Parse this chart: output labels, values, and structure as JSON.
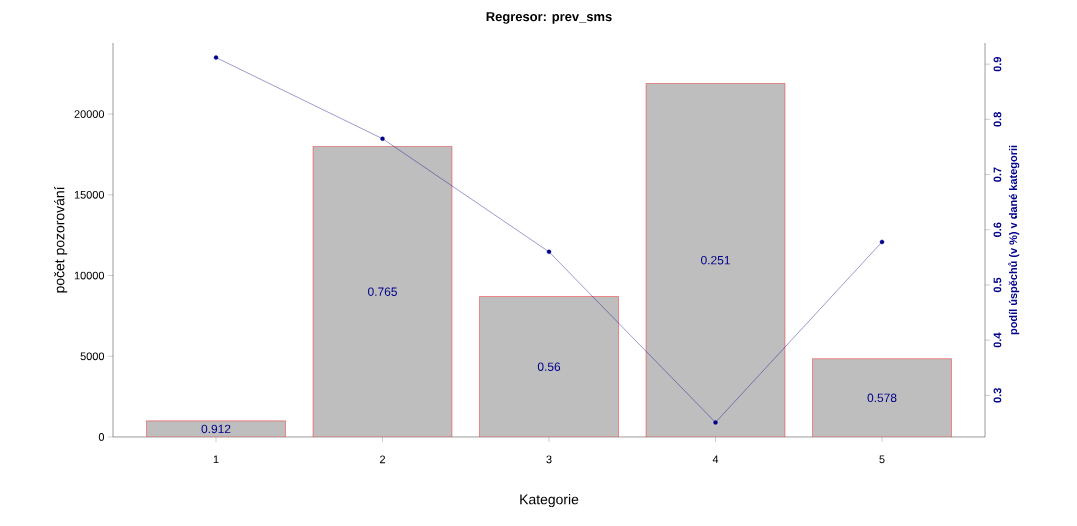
{
  "chart_data": {
    "type": "bar",
    "title": "Regresor:  prev_sms",
    "xlabel": "Kategorie",
    "ylabel": "počet pozorování",
    "y2label": "podíl úspěchů (v %) v dané kategorii",
    "categories": [
      "1",
      "2",
      "3",
      "4",
      "5"
    ],
    "series": [
      {
        "color": "#bebebe",
        "values": [
          1000,
          18000,
          8700,
          21900,
          4850
        ]
      },
      {
        "type": "line",
        "axis": "y2",
        "color": "#00008b",
        "values": [
          0.912,
          0.765,
          0.56,
          0.251,
          0.578
        ]
      }
    ],
    "annotations": [
      "0.912",
      "0.765",
      "0.56",
      "0.251",
      "0.578"
    ],
    "ylim": [
      0,
      24400
    ],
    "yticks": [
      0,
      5000,
      10000,
      15000,
      20000
    ],
    "y2lim": [
      0.2246,
      0.9384
    ],
    "y2ticks": [
      0.3,
      0.4,
      0.5,
      0.6,
      0.7,
      0.8,
      0.9
    ],
    "marker": "circle",
    "grid": false
  }
}
